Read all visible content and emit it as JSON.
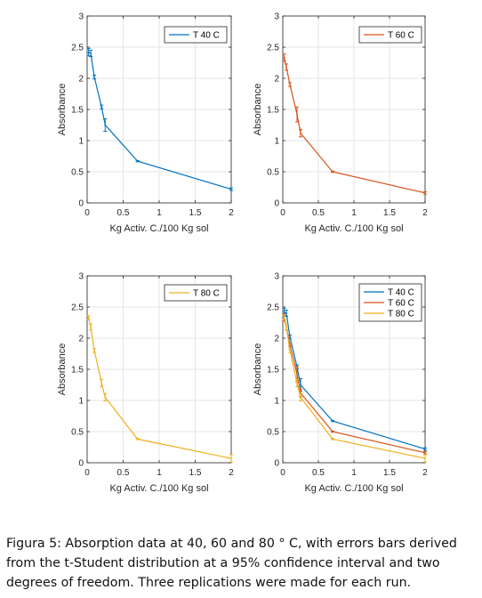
{
  "caption": "Figura 5: Absorption data at 40, 60 and 80 ° C, with errors bars derived from the t-Student distribution at a 95% confidence interval and two degrees of freedom. Three replications were made for each run.",
  "colors": {
    "T 40 C": "#0072bd",
    "T 60 C": "#d95319",
    "T 80 C": "#edb120",
    "axis": "#262626",
    "grid": "#e6e6e6"
  },
  "chart_data": [
    {
      "type": "line",
      "xlabel": "Kg Activ. C./100 Kg sol",
      "ylabel": "Absorbance",
      "xlim": [
        0,
        2
      ],
      "ylim": [
        0,
        3
      ],
      "xticks": [
        "0",
        "0.5",
        "1",
        "1.5",
        "2"
      ],
      "yticks": [
        "0",
        "0.5",
        "1",
        "1.5",
        "2",
        "2.5",
        "3"
      ],
      "grid": true,
      "legend": "top-right",
      "series": [
        {
          "name": "T 40 C",
          "x": [
            0.02,
            0.05,
            0.1,
            0.2,
            0.25,
            0.7,
            2.0
          ],
          "y": [
            2.42,
            2.4,
            2.02,
            1.54,
            1.25,
            0.67,
            0.22
          ],
          "err": [
            0.06,
            0.05,
            0.03,
            0.03,
            0.1,
            0.01,
            0.02
          ]
        }
      ]
    },
    {
      "type": "line",
      "xlabel": "Kg Activ. C./100 Kg sol",
      "ylabel": "Absorbance",
      "xlim": [
        0,
        2
      ],
      "ylim": [
        0,
        3
      ],
      "xticks": [
        "0",
        "0.5",
        "1",
        "1.5",
        "2"
      ],
      "yticks": [
        "0",
        "0.5",
        "1",
        "1.5",
        "2",
        "2.5",
        "3"
      ],
      "grid": true,
      "legend": "top-right",
      "series": [
        {
          "name": "T 60 C",
          "x": [
            0.02,
            0.05,
            0.1,
            0.2,
            0.25,
            0.7,
            2.0
          ],
          "y": [
            2.33,
            2.18,
            1.9,
            1.42,
            1.12,
            0.5,
            0.16
          ],
          "err": [
            0.06,
            0.05,
            0.03,
            0.12,
            0.06,
            0.01,
            0.02
          ]
        }
      ]
    },
    {
      "type": "line",
      "xlabel": "Kg Activ. C./100 Kg sol",
      "ylabel": "Absorbance",
      "xlim": [
        0,
        2
      ],
      "ylim": [
        0,
        3
      ],
      "xticks": [
        "0",
        "0.5",
        "1",
        "1.5",
        "2"
      ],
      "yticks": [
        "0",
        "0.5",
        "1",
        "1.5",
        "2",
        "2.5",
        "3"
      ],
      "grid": true,
      "legend": "top-right",
      "series": [
        {
          "name": "T 80 C",
          "x": [
            0.02,
            0.05,
            0.1,
            0.2,
            0.25,
            0.7,
            2.0
          ],
          "y": [
            2.33,
            2.18,
            1.8,
            1.28,
            1.05,
            0.38,
            0.07
          ],
          "err": [
            0.03,
            0.05,
            0.03,
            0.06,
            0.06,
            0.01,
            0.06
          ]
        }
      ]
    },
    {
      "type": "line",
      "xlabel": "Kg Activ. C./100 Kg sol",
      "ylabel": "Absorbance",
      "xlim": [
        0,
        2
      ],
      "ylim": [
        0,
        3
      ],
      "xticks": [
        "0",
        "0.5",
        "1",
        "1.5",
        "2"
      ],
      "yticks": [
        "0",
        "0.5",
        "1",
        "1.5",
        "2",
        "2.5",
        "3"
      ],
      "grid": true,
      "legend": "top-right",
      "series": [
        {
          "name": "T 40 C",
          "x": [
            0.02,
            0.05,
            0.1,
            0.2,
            0.25,
            0.7,
            2.0
          ],
          "y": [
            2.42,
            2.4,
            2.02,
            1.54,
            1.25,
            0.67,
            0.22
          ],
          "err": [
            0.06,
            0.05,
            0.03,
            0.03,
            0.1,
            0.01,
            0.02
          ]
        },
        {
          "name": "T 60 C",
          "x": [
            0.02,
            0.05,
            0.1,
            0.2,
            0.25,
            0.7,
            2.0
          ],
          "y": [
            2.33,
            2.18,
            1.9,
            1.42,
            1.12,
            0.5,
            0.16
          ],
          "err": [
            0.06,
            0.05,
            0.03,
            0.12,
            0.06,
            0.01,
            0.02
          ]
        },
        {
          "name": "T 80 C",
          "x": [
            0.02,
            0.05,
            0.1,
            0.2,
            0.25,
            0.7,
            2.0
          ],
          "y": [
            2.33,
            2.18,
            1.8,
            1.28,
            1.05,
            0.38,
            0.07
          ],
          "err": [
            0.03,
            0.05,
            0.03,
            0.06,
            0.06,
            0.01,
            0.06
          ]
        }
      ]
    }
  ]
}
